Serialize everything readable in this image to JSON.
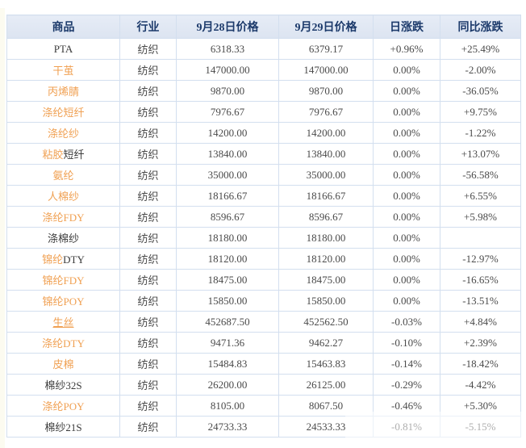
{
  "colors": {
    "header_bg": "#dce4f1",
    "header_text": "#1c3a6b",
    "border": "#d3dfef",
    "link_orange": "#f0a052",
    "up_red": "#dc3030",
    "down_green": "#2f8a2f",
    "neutral_gray": "#4a4a4a",
    "industry_gray": "#8f8f8f"
  },
  "table": {
    "columns": [
      {
        "id": "commodity",
        "label": "商品"
      },
      {
        "id": "industry",
        "label": "行业"
      },
      {
        "id": "price_0928",
        "label": "9月28日价格"
      },
      {
        "id": "price_0929",
        "label": "9月29日价格"
      },
      {
        "id": "daily_change",
        "label": "日涨跌"
      },
      {
        "id": "yoy_change",
        "label": "同比涨跌"
      }
    ],
    "rows": [
      {
        "name_parts": [
          {
            "text": "PTA",
            "link": false
          }
        ],
        "industry": "纺织",
        "price_0928": "6318.33",
        "price_0929": "6379.17",
        "daily": {
          "text": "+0.96%",
          "dir": "up"
        },
        "yoy": {
          "text": "+25.49%",
          "dir": "up"
        }
      },
      {
        "name_parts": [
          {
            "text": "干茧",
            "link": true
          }
        ],
        "industry": "纺织",
        "price_0928": "147000.00",
        "price_0929": "147000.00",
        "daily": {
          "text": "0.00%",
          "dir": "flat"
        },
        "yoy": {
          "text": "-2.00%",
          "dir": "down"
        }
      },
      {
        "name_parts": [
          {
            "text": "丙烯腈",
            "link": true
          }
        ],
        "industry": "纺织",
        "price_0928": "9870.00",
        "price_0929": "9870.00",
        "daily": {
          "text": "0.00%",
          "dir": "flat"
        },
        "yoy": {
          "text": "-36.05%",
          "dir": "down"
        }
      },
      {
        "name_parts": [
          {
            "text": "涤纶短纤",
            "link": true
          }
        ],
        "industry": "纺织",
        "price_0928": "7976.67",
        "price_0929": "7976.67",
        "daily": {
          "text": "0.00%",
          "dir": "flat"
        },
        "yoy": {
          "text": "+9.75%",
          "dir": "up"
        }
      },
      {
        "name_parts": [
          {
            "text": "涤纶纱",
            "link": true
          }
        ],
        "industry": "纺织",
        "price_0928": "14200.00",
        "price_0929": "14200.00",
        "daily": {
          "text": "0.00%",
          "dir": "flat"
        },
        "yoy": {
          "text": "-1.22%",
          "dir": "down"
        }
      },
      {
        "name_parts": [
          {
            "text": "粘胶",
            "link": true
          },
          {
            "text": "短纤",
            "link": false
          }
        ],
        "industry": "纺织",
        "price_0928": "13840.00",
        "price_0929": "13840.00",
        "daily": {
          "text": "0.00%",
          "dir": "flat"
        },
        "yoy": {
          "text": "+13.07%",
          "dir": "up"
        }
      },
      {
        "name_parts": [
          {
            "text": "氨纶",
            "link": true
          }
        ],
        "industry": "纺织",
        "price_0928": "35000.00",
        "price_0929": "35000.00",
        "daily": {
          "text": "0.00%",
          "dir": "flat"
        },
        "yoy": {
          "text": "-56.58%",
          "dir": "down"
        }
      },
      {
        "name_parts": [
          {
            "text": "人棉纱",
            "link": true
          }
        ],
        "industry": "纺织",
        "price_0928": "18166.67",
        "price_0929": "18166.67",
        "daily": {
          "text": "0.00%",
          "dir": "flat"
        },
        "yoy": {
          "text": "+6.55%",
          "dir": "up"
        }
      },
      {
        "name_parts": [
          {
            "text": "涤纶FDY",
            "link": true
          }
        ],
        "industry": "纺织",
        "price_0928": "8596.67",
        "price_0929": "8596.67",
        "daily": {
          "text": "0.00%",
          "dir": "flat"
        },
        "yoy": {
          "text": "+5.98%",
          "dir": "up"
        }
      },
      {
        "name_parts": [
          {
            "text": "涤棉纱",
            "link": false
          }
        ],
        "industry": "纺织",
        "price_0928": "18180.00",
        "price_0929": "18180.00",
        "daily": {
          "text": "0.00%",
          "dir": "flat"
        },
        "yoy": {
          "text": "",
          "dir": "flat"
        }
      },
      {
        "name_parts": [
          {
            "text": "锦纶",
            "link": true
          },
          {
            "text": "DTY",
            "link": false
          }
        ],
        "industry": "纺织",
        "price_0928": "18120.00",
        "price_0929": "18120.00",
        "daily": {
          "text": "0.00%",
          "dir": "flat"
        },
        "yoy": {
          "text": "-12.97%",
          "dir": "down"
        }
      },
      {
        "name_parts": [
          {
            "text": "锦纶FDY",
            "link": true
          }
        ],
        "industry": "纺织",
        "price_0928": "18475.00",
        "price_0929": "18475.00",
        "daily": {
          "text": "0.00%",
          "dir": "flat"
        },
        "yoy": {
          "text": "-16.65%",
          "dir": "down"
        }
      },
      {
        "name_parts": [
          {
            "text": "锦纶POY",
            "link": true
          }
        ],
        "industry": "纺织",
        "price_0928": "15850.00",
        "price_0929": "15850.00",
        "daily": {
          "text": "0.00%",
          "dir": "flat"
        },
        "yoy": {
          "text": "-13.51%",
          "dir": "down"
        }
      },
      {
        "name_parts": [
          {
            "text": "生丝",
            "link": true,
            "underline": true
          }
        ],
        "industry": "纺织",
        "price_0928": "452687.50",
        "price_0929": "452562.50",
        "daily": {
          "text": "-0.03%",
          "dir": "down"
        },
        "yoy": {
          "text": "+4.84%",
          "dir": "up"
        }
      },
      {
        "name_parts": [
          {
            "text": "涤纶DTY",
            "link": true
          }
        ],
        "industry": "纺织",
        "price_0928": "9471.36",
        "price_0929": "9462.27",
        "daily": {
          "text": "-0.10%",
          "dir": "down"
        },
        "yoy": {
          "text": "+2.39%",
          "dir": "up"
        }
      },
      {
        "name_parts": [
          {
            "text": "皮棉",
            "link": true
          }
        ],
        "industry": "纺织",
        "price_0928": "15484.83",
        "price_0929": "15463.83",
        "daily": {
          "text": "-0.14%",
          "dir": "down"
        },
        "yoy": {
          "text": "-18.42%",
          "dir": "down"
        }
      },
      {
        "name_parts": [
          {
            "text": "棉纱32S",
            "link": false
          }
        ],
        "industry": "纺织",
        "price_0928": "26200.00",
        "price_0929": "26125.00",
        "daily": {
          "text": "-0.29%",
          "dir": "down"
        },
        "yoy": {
          "text": "-4.42%",
          "dir": "down"
        }
      },
      {
        "name_parts": [
          {
            "text": "涤纶POY",
            "link": true
          }
        ],
        "industry": "纺织",
        "price_0928": "8105.00",
        "price_0929": "8067.50",
        "daily": {
          "text": "-0.46%",
          "dir": "down"
        },
        "yoy": {
          "text": "+5.30%",
          "dir": "up"
        }
      },
      {
        "name_parts": [
          {
            "text": "棉纱21S",
            "link": false
          }
        ],
        "industry": "纺织",
        "price_0928": "24733.33",
        "price_0929": "24533.33",
        "daily": {
          "text": "-0.81%",
          "dir": "down"
        },
        "yoy": {
          "text": "-5.15%",
          "dir": "down"
        }
      }
    ]
  }
}
